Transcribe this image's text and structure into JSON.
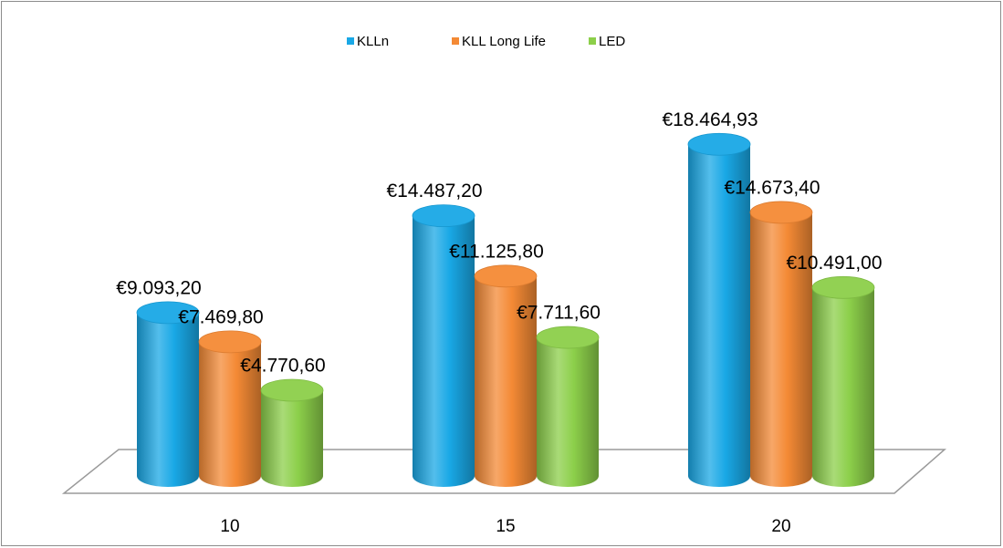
{
  "chart_data": {
    "type": "bar3d",
    "categories": [
      "10",
      "15",
      "20"
    ],
    "series": [
      {
        "name": "KLLn",
        "color": "#19a8e6",
        "values": [
          9093.2,
          14487.2,
          18464.93
        ],
        "value_labels": [
          "€9.093,20",
          "€14.487,20",
          "€18.464,93"
        ]
      },
      {
        "name": "KLL Long Life",
        "color": "#f48a35",
        "values": [
          7469.8,
          11125.8,
          14673.4
        ],
        "value_labels": [
          "€7.469,80",
          "€11.125,80",
          "€14.673,40"
        ]
      },
      {
        "name": "LED",
        "color": "#8ccf4a",
        "values": [
          4770.6,
          7711.6,
          10491.0
        ],
        "value_labels": [
          "€4.770,60",
          "€7.711,60",
          "€10.491,00"
        ]
      }
    ],
    "legend": "top"
  }
}
